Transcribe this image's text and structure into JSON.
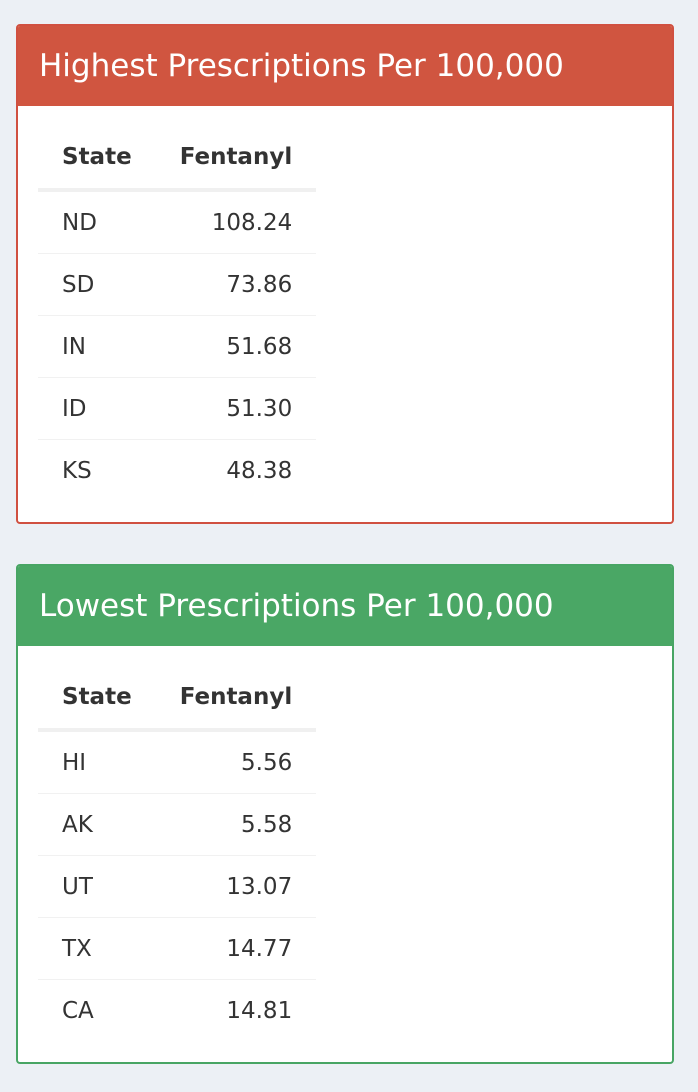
{
  "highest": {
    "title": "Highest Prescriptions Per 100,000",
    "header_color": "#d05540",
    "columns": [
      "State",
      "Fentanyl"
    ],
    "rows": [
      {
        "state": "ND",
        "value": "108.24"
      },
      {
        "state": "SD",
        "value": "73.86"
      },
      {
        "state": "IN",
        "value": "51.68"
      },
      {
        "state": "ID",
        "value": "51.30"
      },
      {
        "state": "KS",
        "value": "48.38"
      }
    ]
  },
  "lowest": {
    "title": "Lowest Prescriptions Per 100,000",
    "header_color": "#4aa765",
    "columns": [
      "State",
      "Fentanyl"
    ],
    "rows": [
      {
        "state": "HI",
        "value": "5.56"
      },
      {
        "state": "AK",
        "value": "5.58"
      },
      {
        "state": "UT",
        "value": "13.07"
      },
      {
        "state": "TX",
        "value": "14.77"
      },
      {
        "state": "CA",
        "value": "14.81"
      }
    ]
  }
}
